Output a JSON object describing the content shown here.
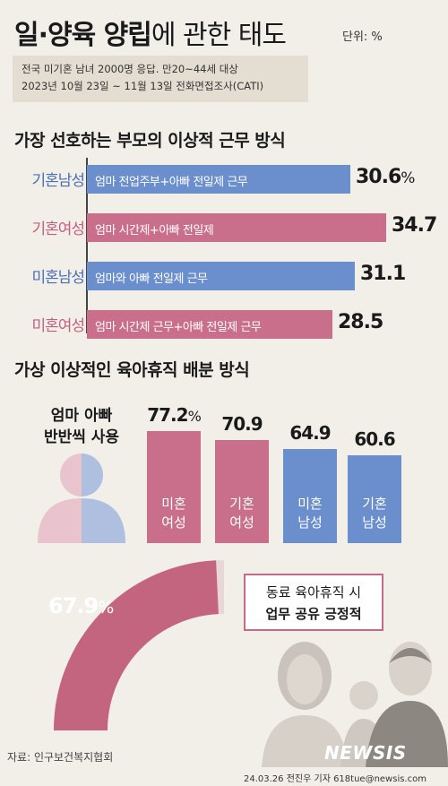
{
  "header": {
    "title_bold": "일·양육 양립",
    "title_rest": "에 관한 태도",
    "unit": "단위: %",
    "note_line1": "전국 미기혼 남녀 2000명 응답. 만20~44세 대상",
    "note_line2": "2023년 10월 23일 ~ 11월 13일 전화면접조사(CATI)"
  },
  "colors": {
    "blue": "#6b8fcc",
    "pink": "#c96f8b",
    "blue_text": "#4a6fb5",
    "pink_text": "#c35e7e",
    "gauge": "#c4657f",
    "gauge_bg": "#e9d6d9"
  },
  "section1": {
    "title": "가장 선호하는 부모의 이상적 근무 방식"
  },
  "section2": {
    "title": "가상 이상적인 육아휴직 배분 방식"
  },
  "chart_data": [
    {
      "type": "bar",
      "orientation": "horizontal",
      "title": "가장 선호하는 부모의 이상적 근무 방식",
      "unit": "%",
      "categories": [
        "기혼남성",
        "기혼여성",
        "미혼남성",
        "미혼여성"
      ],
      "bar_labels": [
        "엄마 전업주부+아빠 전일제 근무",
        "엄마 시간제+아빠 전일제",
        "엄마와 아빠 전일제 근무",
        "엄마 시간제 근무+아빠 전일제 근무"
      ],
      "values": [
        30.6,
        34.7,
        31.1,
        28.5
      ],
      "value_labels": [
        "30.6",
        "34.7",
        "31.1",
        "28.5"
      ],
      "colors": [
        "blue",
        "pink",
        "blue",
        "pink"
      ],
      "pct_suffix": "%"
    },
    {
      "type": "bar",
      "orientation": "vertical",
      "title": "가상 이상적인 육아휴직 배분 방식",
      "subtitle_line1": "엄마 아빠",
      "subtitle_line2": "반반씩 사용",
      "unit": "%",
      "categories": [
        [
          "미혼",
          "여성"
        ],
        [
          "기혼",
          "여성"
        ],
        [
          "미혼",
          "남성"
        ],
        [
          "기혼",
          "남성"
        ]
      ],
      "values": [
        77.2,
        70.9,
        64.9,
        60.6
      ],
      "value_labels": [
        "77.2",
        "70.9",
        "64.9",
        "60.6"
      ],
      "colors": [
        "pink",
        "pink",
        "blue",
        "blue"
      ],
      "pct_suffix": "%"
    },
    {
      "type": "gauge",
      "value": 67.9,
      "value_label": "67.9",
      "pct_suffix": "%",
      "callout_line1": "동료 육아휴직 시",
      "callout_line2": "업무 공유 긍정적"
    }
  ],
  "footer": {
    "source": "자료: 인구보건복지협회",
    "credit": "24.03.26 전진우 기자 618tue@newsis.com",
    "logo": "NEWSIS"
  }
}
